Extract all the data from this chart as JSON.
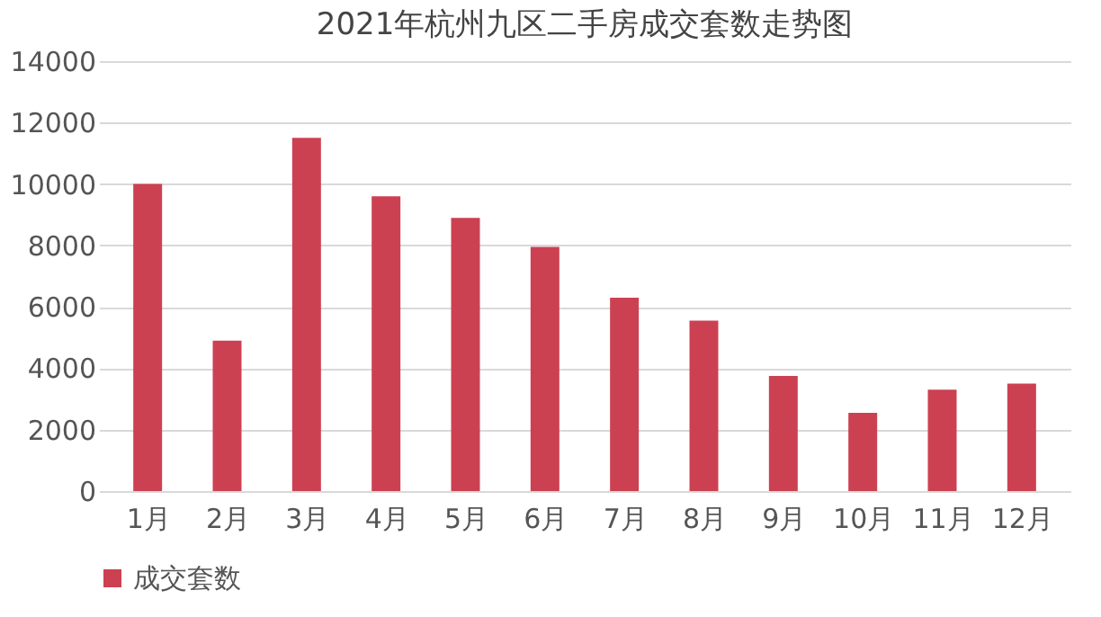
{
  "chart_data": {
    "type": "bar",
    "title": "2021年杭州九区二手房成交套数走势图",
    "categories": [
      "1月",
      "2月",
      "3月",
      "4月",
      "5月",
      "6月",
      "7月",
      "8月",
      "9月",
      "10月",
      "11月",
      "12月"
    ],
    "series": [
      {
        "name": "成交套数",
        "color": "#cc4152",
        "values": [
          10000,
          4900,
          11500,
          9600,
          8900,
          7950,
          6300,
          5550,
          3750,
          2550,
          3300,
          3500
        ]
      }
    ],
    "ylim": [
      0,
      14000
    ],
    "yticks": [
      0,
      2000,
      4000,
      6000,
      8000,
      10000,
      12000,
      14000
    ],
    "grid": "y",
    "legend": "bottom"
  }
}
